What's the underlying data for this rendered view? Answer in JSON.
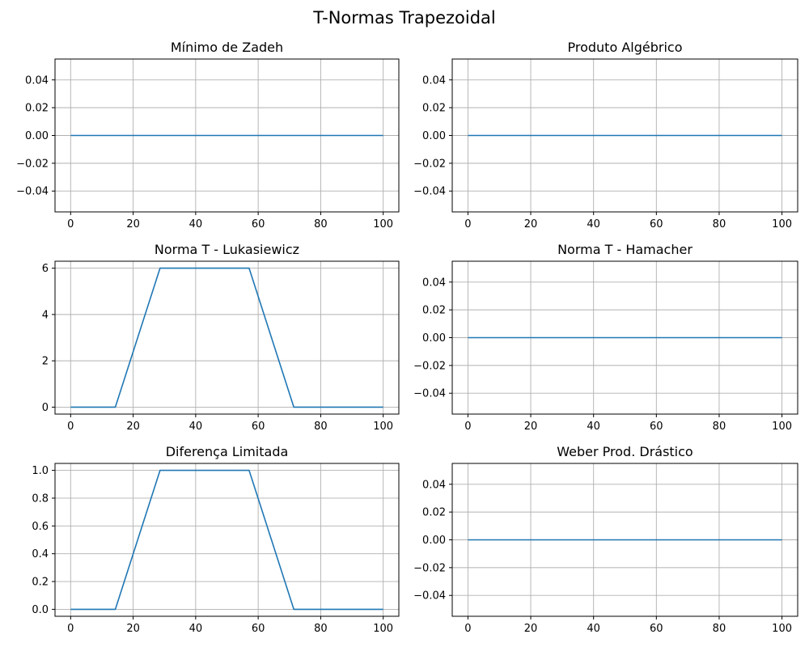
{
  "figure": {
    "title": "T-Normas Trapezoidal"
  },
  "colors": {
    "line": "#1f77b4",
    "grid": "#b0b0b0",
    "axes": "#000000",
    "background": "#ffffff"
  },
  "chart_data": [
    {
      "type": "line",
      "title": "Mínimo de Zadeh",
      "xlabel": "",
      "ylabel": "",
      "xlim": [
        -5,
        105
      ],
      "ylim": [
        -0.055,
        0.055
      ],
      "xticks": [
        0,
        20,
        40,
        60,
        80,
        100
      ],
      "yticks": [
        -0.04,
        -0.02,
        0.0,
        0.02,
        0.04
      ],
      "ytick_labels": [
        "−0.04",
        "−0.02",
        "0.00",
        "0.02",
        "0.04"
      ],
      "grid": true,
      "series": [
        {
          "x": [
            0,
            100
          ],
          "y": [
            0,
            0
          ]
        }
      ]
    },
    {
      "type": "line",
      "title": "Produto Algébrico",
      "xlabel": "",
      "ylabel": "",
      "xlim": [
        -5,
        105
      ],
      "ylim": [
        -0.055,
        0.055
      ],
      "xticks": [
        0,
        20,
        40,
        60,
        80,
        100
      ],
      "yticks": [
        -0.04,
        -0.02,
        0.0,
        0.02,
        0.04
      ],
      "ytick_labels": [
        "−0.04",
        "−0.02",
        "0.00",
        "0.02",
        "0.04"
      ],
      "grid": true,
      "series": [
        {
          "x": [
            0,
            100
          ],
          "y": [
            0,
            0
          ]
        }
      ]
    },
    {
      "type": "line",
      "title": "Norma T - Lukasiewicz",
      "xlabel": "",
      "ylabel": "",
      "xlim": [
        -5,
        105
      ],
      "ylim": [
        -0.3,
        6.3
      ],
      "xticks": [
        0,
        20,
        40,
        60,
        80,
        100
      ],
      "yticks": [
        0,
        2,
        4,
        6
      ],
      "ytick_labels": [
        "0",
        "2",
        "4",
        "6"
      ],
      "grid": true,
      "series": [
        {
          "x": [
            0,
            14.3,
            28.6,
            57.1,
            71.4,
            100
          ],
          "y": [
            0,
            0,
            6,
            6,
            0,
            0
          ]
        }
      ]
    },
    {
      "type": "line",
      "title": "Norma T - Hamacher",
      "xlabel": "",
      "ylabel": "",
      "xlim": [
        -5,
        105
      ],
      "ylim": [
        -0.055,
        0.055
      ],
      "xticks": [
        0,
        20,
        40,
        60,
        80,
        100
      ],
      "yticks": [
        -0.04,
        -0.02,
        0.0,
        0.02,
        0.04
      ],
      "ytick_labels": [
        "−0.04",
        "−0.02",
        "0.00",
        "0.02",
        "0.04"
      ],
      "grid": true,
      "series": [
        {
          "x": [
            0,
            100
          ],
          "y": [
            0,
            0
          ]
        }
      ]
    },
    {
      "type": "line",
      "title": "Diferença Limitada",
      "xlabel": "",
      "ylabel": "",
      "xlim": [
        -5,
        105
      ],
      "ylim": [
        -0.05,
        1.05
      ],
      "xticks": [
        0,
        20,
        40,
        60,
        80,
        100
      ],
      "yticks": [
        0.0,
        0.2,
        0.4,
        0.6,
        0.8,
        1.0
      ],
      "ytick_labels": [
        "0.0",
        "0.2",
        "0.4",
        "0.6",
        "0.8",
        "1.0"
      ],
      "grid": true,
      "series": [
        {
          "x": [
            0,
            14.3,
            28.6,
            57.1,
            71.4,
            100
          ],
          "y": [
            0,
            0,
            1,
            1,
            0,
            0
          ]
        }
      ]
    },
    {
      "type": "line",
      "title": "Weber Prod. Drástico",
      "xlabel": "",
      "ylabel": "",
      "xlim": [
        -5,
        105
      ],
      "ylim": [
        -0.055,
        0.055
      ],
      "xticks": [
        0,
        20,
        40,
        60,
        80,
        100
      ],
      "yticks": [
        -0.04,
        -0.02,
        0.0,
        0.02,
        0.04
      ],
      "ytick_labels": [
        "−0.04",
        "−0.02",
        "0.00",
        "0.02",
        "0.04"
      ],
      "grid": true,
      "series": [
        {
          "x": [
            0,
            100
          ],
          "y": [
            0,
            0
          ]
        }
      ]
    }
  ]
}
